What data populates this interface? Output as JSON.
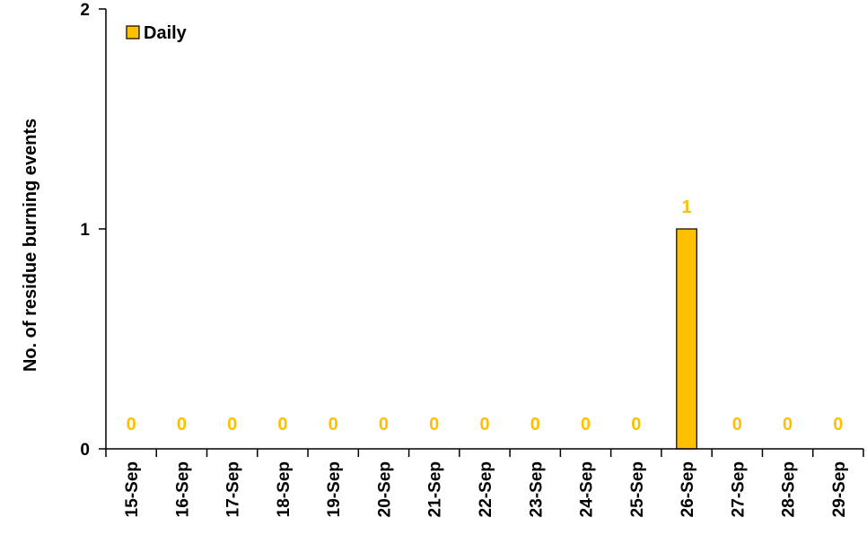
{
  "chart_data": {
    "type": "bar",
    "title": "",
    "xlabel": "",
    "ylabel": "No. of residue burning events",
    "ylim": [
      0,
      2
    ],
    "yticks": [
      0,
      1,
      2
    ],
    "categories": [
      "15-Sep",
      "16-Sep",
      "17-Sep",
      "18-Sep",
      "19-Sep",
      "20-Sep",
      "21-Sep",
      "22-Sep",
      "23-Sep",
      "24-Sep",
      "25-Sep",
      "26-Sep",
      "27-Sep",
      "28-Sep",
      "29-Sep"
    ],
    "series": [
      {
        "name": "Daily",
        "values": [
          0,
          0,
          0,
          0,
          0,
          0,
          0,
          0,
          0,
          0,
          0,
          1,
          0,
          0,
          0
        ],
        "color": "#FFC000"
      }
    ],
    "data_labels": [
      "0",
      "0",
      "0",
      "0",
      "0",
      "0",
      "0",
      "0",
      "0",
      "0",
      "0",
      "1",
      "0",
      "0",
      "0"
    ],
    "data_label_color": "#FFC000",
    "legend_position": "top-left",
    "grid": false
  }
}
